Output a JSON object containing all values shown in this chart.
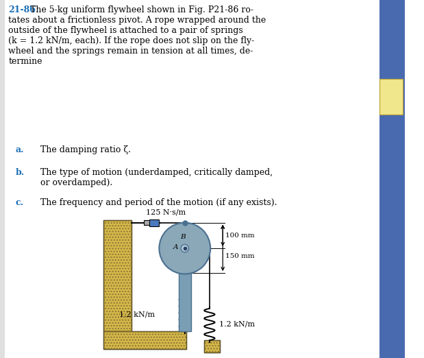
{
  "bg_color": "#ffffff",
  "title_num": "21-86",
  "title_color": "#1a6eb5",
  "wall_color": "#d4b84a",
  "flywheel_color": "#8aa8b8",
  "shaft_color": "#7a9fb5",
  "damper_color": "#4a7abf",
  "spring_label_left": "1.2 kN/m",
  "spring_label_bottom": "1.2 kN/m",
  "damper_label": "125 N·s/m",
  "dim_100": "100 mm",
  "dim_150": "150 mm",
  "label_A": "A",
  "label_B": "B",
  "side_bar_color": "#4a6ab0",
  "note_color": "#f0e68c"
}
